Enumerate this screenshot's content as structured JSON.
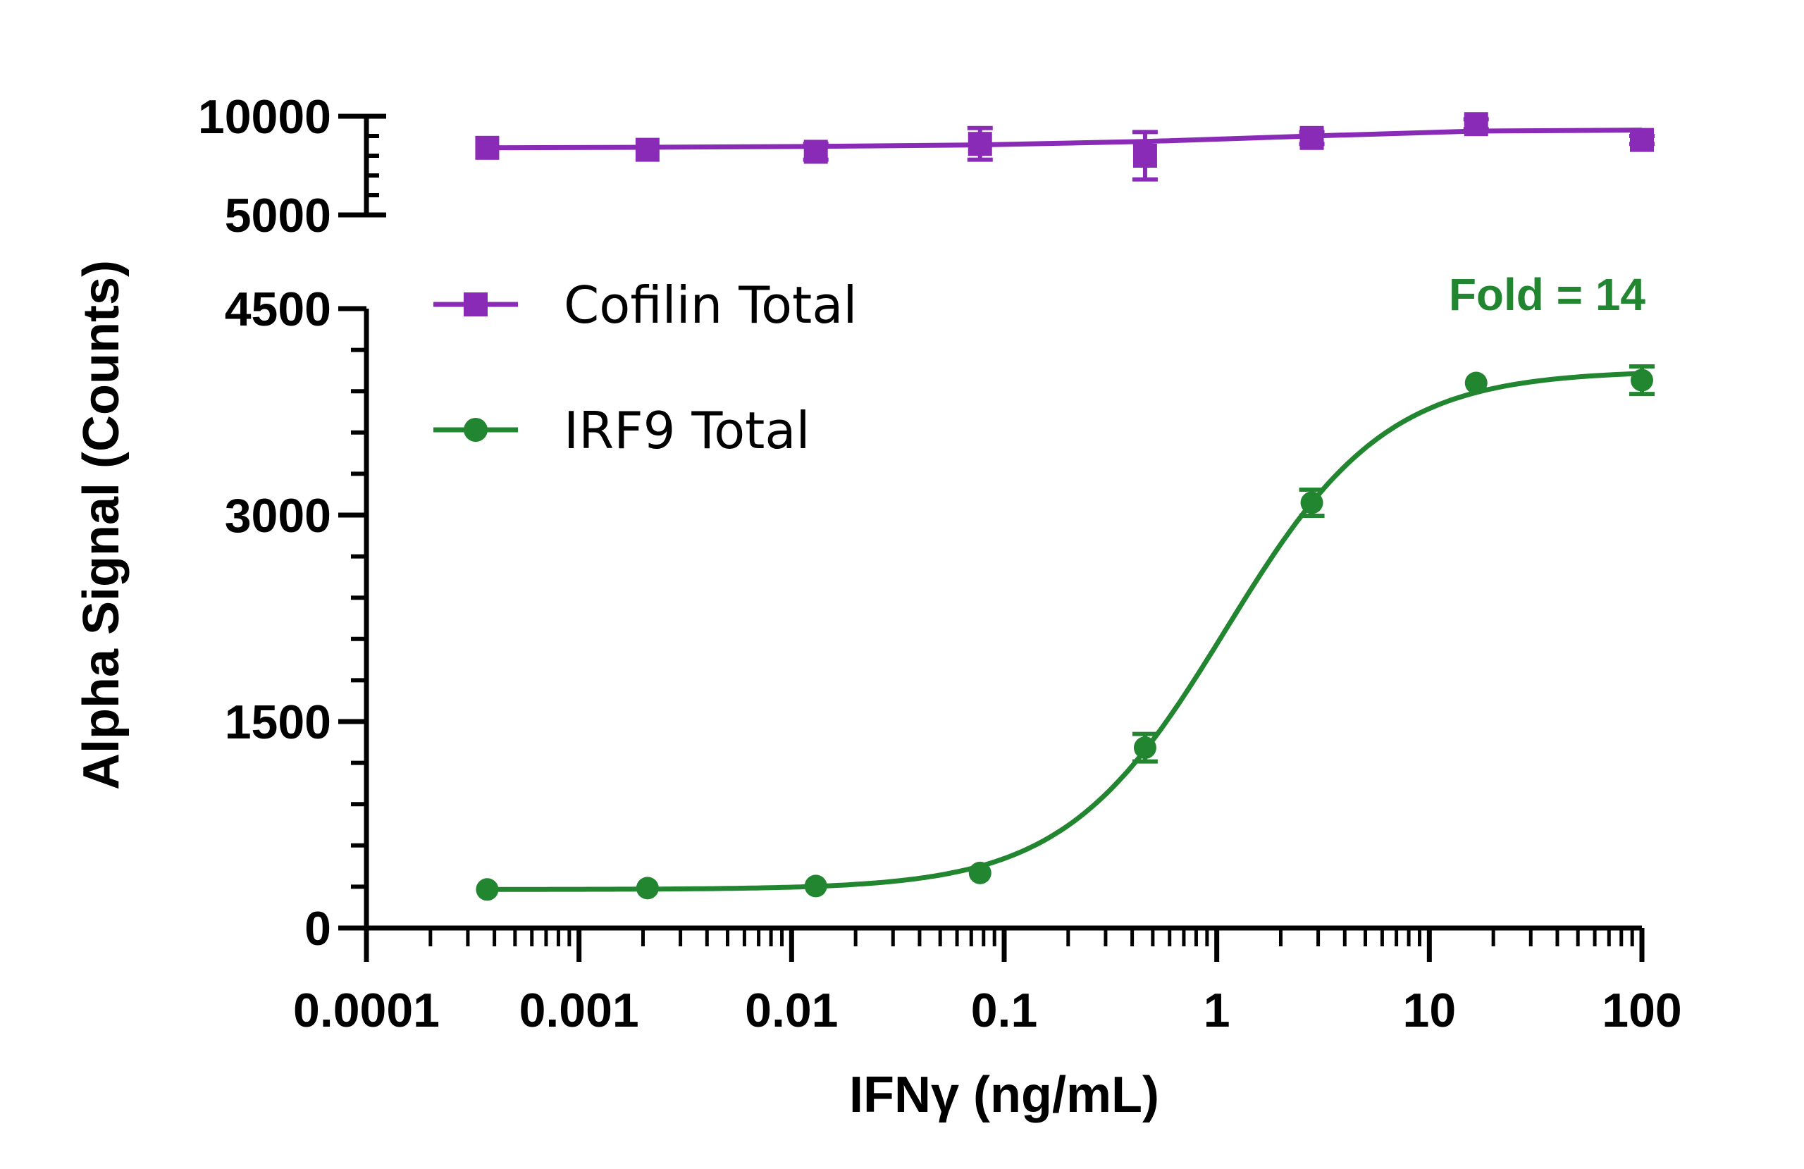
{
  "chart_data": {
    "type": "scatter",
    "title": "",
    "xlabel": "IFNγ (ng/mL)",
    "ylabel": "Alpha Signal (Counts)",
    "x_scale": "log",
    "xlim": [
      0.0001,
      100
    ],
    "x_tick_labels": [
      "0.0001",
      "0.001",
      "0.01",
      "0.1",
      "1",
      "10",
      "100"
    ],
    "x_tick_values": [
      0.0001,
      0.001,
      0.01,
      0.1,
      1,
      10,
      100
    ],
    "y_axis_break": true,
    "y_upper_segment": {
      "ylim": [
        5000,
        10000
      ],
      "tick_labels": [
        "5000",
        "10000"
      ],
      "tick_values": [
        5000,
        10000
      ]
    },
    "y_lower_segment": {
      "ylim": [
        0,
        4500
      ],
      "tick_labels": [
        "0",
        "1500",
        "3000",
        "4500"
      ],
      "tick_values": [
        0,
        1500,
        3000,
        4500
      ]
    },
    "grid": false,
    "legend_position": "upper-left",
    "annotation": {
      "text": "Fold = 14",
      "color": "#22852f"
    },
    "series": [
      {
        "name": "Cofilin Total",
        "color": "#8a2bb8",
        "marker": "square",
        "segment": "upper",
        "fit": "line",
        "x": [
          0.00037,
          0.0021,
          0.013,
          0.077,
          0.46,
          2.8,
          16.6,
          100
        ],
        "values": [
          8400,
          8300,
          8200,
          8600,
          8000,
          8900,
          9600,
          8800
        ],
        "errors": [
          0,
          0,
          400,
          800,
          1200,
          300,
          250,
          200
        ],
        "fit_values": [
          8400,
          8430,
          8470,
          8550,
          8720,
          9000,
          9250,
          9300
        ]
      },
      {
        "name": "IRF9 Total",
        "color": "#22852f",
        "marker": "circle",
        "segment": "lower",
        "fit": "sigmoid",
        "x": [
          0.00037,
          0.0021,
          0.013,
          0.077,
          0.46,
          2.8,
          16.6,
          100
        ],
        "values": [
          280,
          290,
          305,
          400,
          1310,
          3090,
          3960,
          3980
        ],
        "errors": [
          0,
          0,
          0,
          0,
          100,
          95,
          0,
          100
        ],
        "fit_params": {
          "bottom": 280,
          "top": 4050,
          "ec50": 1.1,
          "hill": 1.15
        }
      }
    ]
  }
}
